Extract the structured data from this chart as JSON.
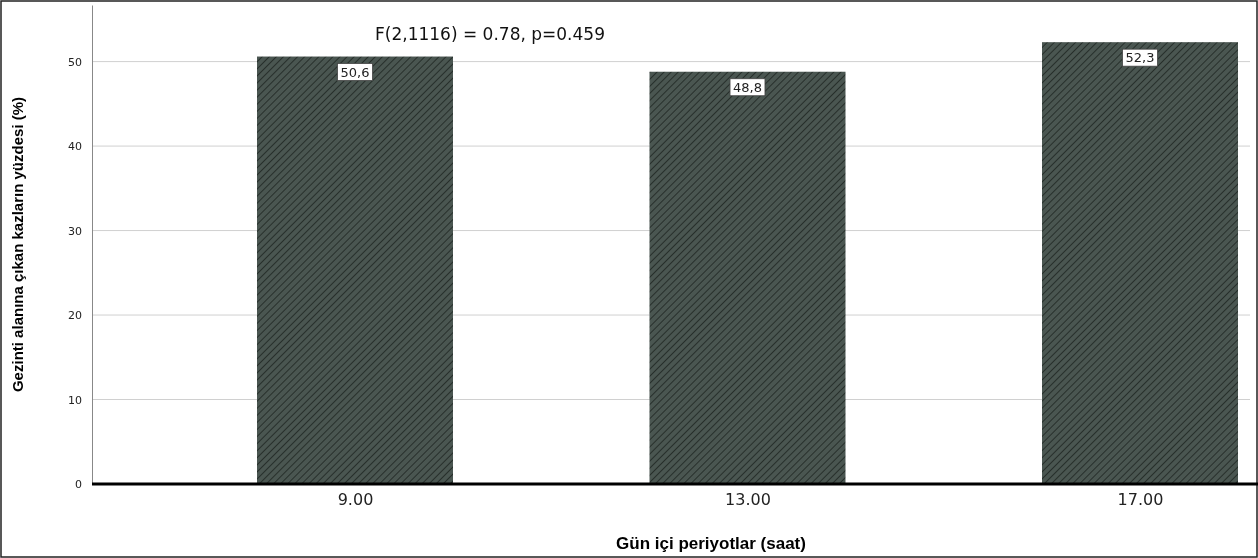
{
  "chart_data": {
    "type": "bar",
    "categories": [
      "9.00",
      "13.00",
      "17.00"
    ],
    "values": [
      50.6,
      48.8,
      52.3
    ],
    "value_labels": [
      "50,6",
      "48,8",
      "52,3"
    ],
    "color": "#4a5651",
    "xlabel": "Gün içi periyotlar (saat)",
    "ylabel": "Gezinti alanına çıkan kazların yüzdesi (%)",
    "annotations": [
      "F(2,1116) = 0.78, p=0.459"
    ],
    "ylim": [
      0,
      56.7
    ],
    "yticks": [
      0,
      10,
      20,
      30,
      40,
      50
    ],
    "grid": "y"
  }
}
